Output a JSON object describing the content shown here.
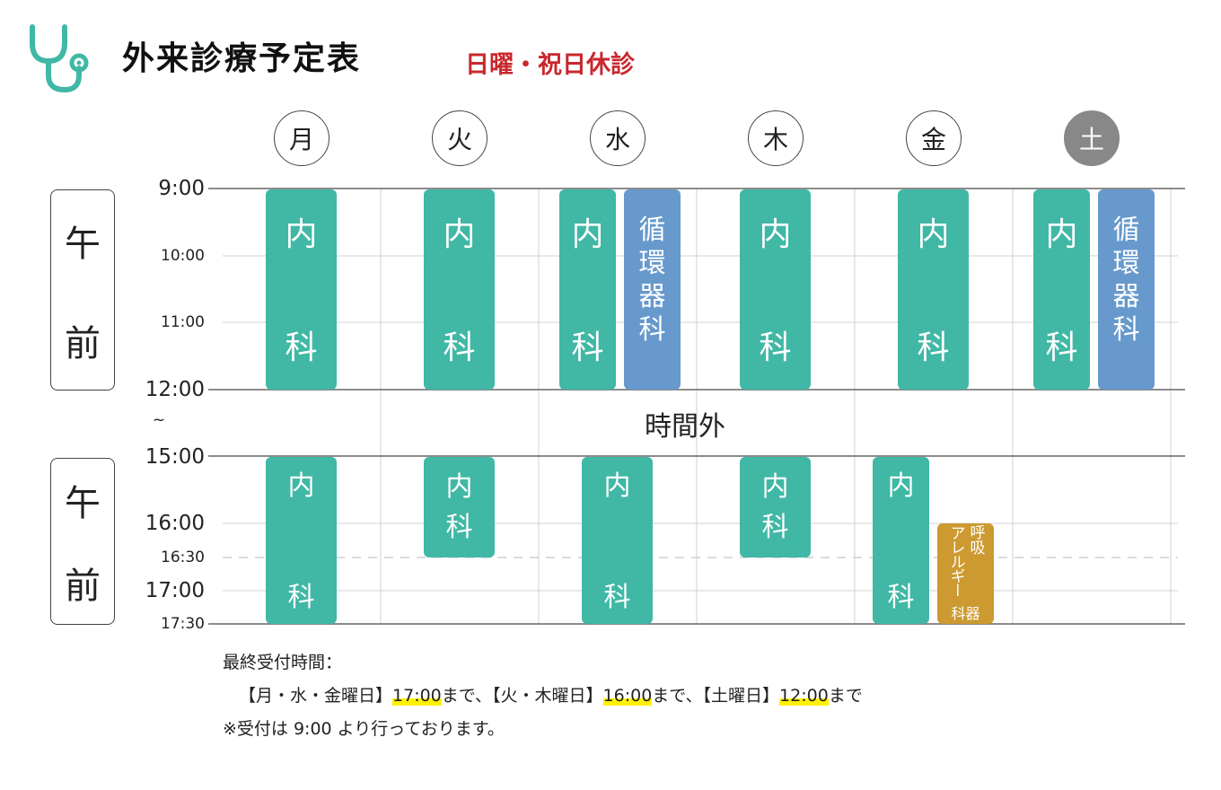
{
  "header": {
    "title": "外来診療予定表",
    "closed_note": "日曜・祝日休診",
    "icon": "stethoscope-icon"
  },
  "days": [
    "月",
    "火",
    "水",
    "木",
    "金",
    "土"
  ],
  "time_labels": {
    "t0900": "9:00",
    "t1000": "10:00",
    "t1100": "11:00",
    "t1200": "12:00",
    "tilde": "~",
    "t1500": "15:00",
    "t1600": "16:00",
    "t1630": "16:30",
    "t1700": "17:00",
    "t1730": "17:30"
  },
  "periods": {
    "morning": [
      "午",
      "前"
    ],
    "afternoon": [
      "午",
      "前"
    ]
  },
  "break_label": "時間外",
  "departments": {
    "internal": [
      "内",
      "科"
    ],
    "cardio": [
      "循",
      "環",
      "器",
      "科"
    ],
    "resp_allergy": {
      "col1": "アレルギー",
      "col2": "呼吸",
      "bottom": "科器"
    }
  },
  "notes": {
    "line1": "最終受付時間：",
    "line2_a": "【月・水・金曜日】",
    "line2_t1": "17:00",
    "line2_b": "まで、【火・木曜日】",
    "line2_t2": "16:00",
    "line2_c": "まで、【土曜日】",
    "line2_t3": "12:00",
    "line2_d": "まで",
    "line3": "※受付は 9:00 より行っております。"
  },
  "colors": {
    "internal": "#40b8a5",
    "cardio": "#6799cc",
    "resp_allergy": "#cc9a30",
    "closed_note": "#c8282e",
    "icon": "#40b8a5",
    "highlight": "#fff200"
  }
}
